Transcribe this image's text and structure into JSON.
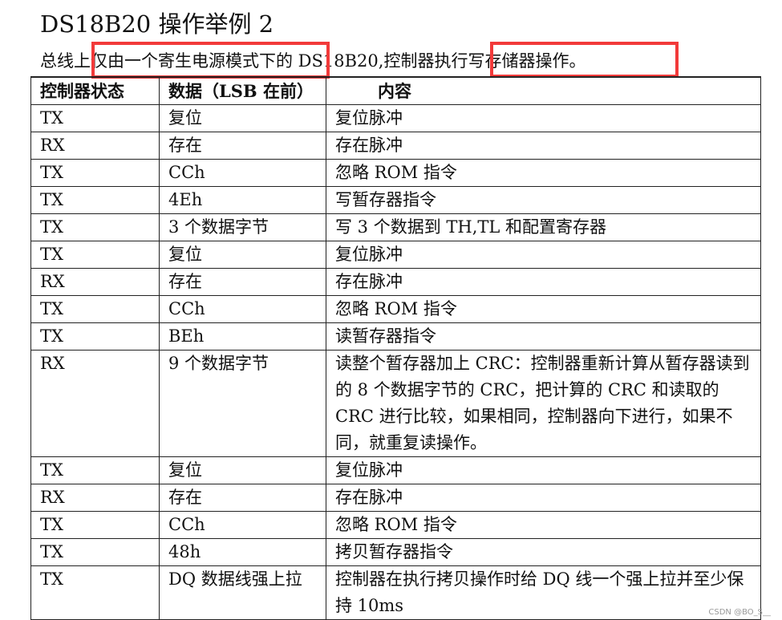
{
  "title": "DS18B20 操作举例 2",
  "intro": "总线上仅由一个寄生电源模式下的 DS18B20,控制器执行写存储器操作。",
  "highlight_color": "#f23a3a",
  "table": {
    "headers": [
      "控制器状态",
      "数据（LSB 在前）",
      "内容"
    ],
    "rows": [
      [
        "TX",
        "复位",
        "复位脉冲"
      ],
      [
        "RX",
        "存在",
        "存在脉冲"
      ],
      [
        "TX",
        "CCh",
        "忽略 ROM 指令"
      ],
      [
        "TX",
        "4Eh",
        "写暂存器指令"
      ],
      [
        "TX",
        "3 个数据字节",
        "写 3 个数据到 TH,TL 和配置寄存器"
      ],
      [
        "TX",
        "复位",
        "复位脉冲"
      ],
      [
        "RX",
        "存在",
        "存在脉冲"
      ],
      [
        "TX",
        "CCh",
        "忽略 ROM 指令"
      ],
      [
        "TX",
        "BEh",
        "读暂存器指令"
      ],
      [
        "RX",
        "9 个数据字节",
        "读整个暂存器加上 CRC：控制器重新计算从暂存器读到的 8 个数据字节的 CRC，把计算的 CRC 和读取的 CRC 进行比较，如果相同，控制器向下进行，如果不同，就重复读操作。"
      ],
      [
        "TX",
        "复位",
        "复位脉冲"
      ],
      [
        "RX",
        "存在",
        "存在脉冲"
      ],
      [
        "TX",
        "CCh",
        "忽略 ROM 指令"
      ],
      [
        "TX",
        "48h",
        "拷贝暂存器指令"
      ],
      [
        "TX",
        "DQ 数据线强上拉",
        "控制器在执行拷贝操作时给 DQ 线一个强上拉并至少保持 10ms"
      ]
    ]
  },
  "watermark": "CSDN @BO_S__"
}
